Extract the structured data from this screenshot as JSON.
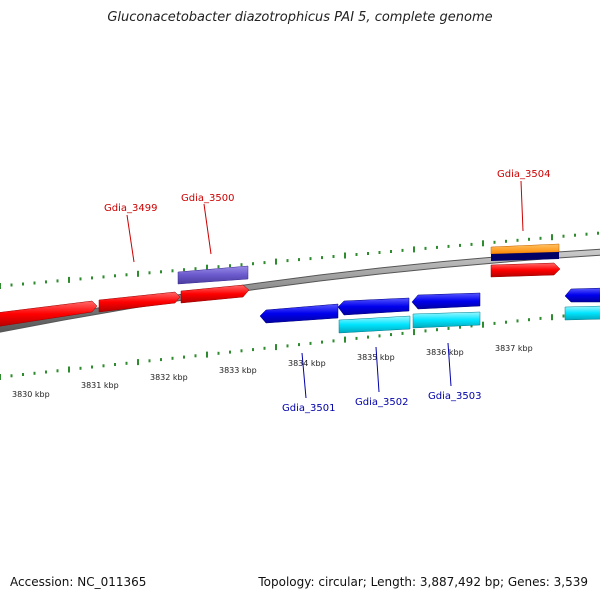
{
  "title": "Gluconacetobacter diazotrophicus PAI 5, complete genome",
  "footer": {
    "accession": "Accession: NC_011365",
    "summary": "Topology: circular; Length: 3,887,492 bp; Genes: 3,539"
  },
  "colors": {
    "forward_gene": "#ff0000",
    "reverse_gene": "#0000ee",
    "cyan_feature": "#00e5ff",
    "purple_feature": "#6a5acd",
    "orange_feature": "#ff9900",
    "navy_feature": "#000066",
    "backbone": "#888888",
    "ticks": "#2e8b2e",
    "label_forward": "#cc0000",
    "label_reverse": "#0000aa"
  },
  "ticks": [
    {
      "label": "3830 kbp"
    },
    {
      "label": "3831 kbp"
    },
    {
      "label": "3832 kbp"
    },
    {
      "label": "3833 kbp"
    },
    {
      "label": "3834 kbp"
    },
    {
      "label": "3835 kbp"
    },
    {
      "label": "3836 kbp"
    },
    {
      "label": "3837 kbp"
    }
  ],
  "gene_labels": [
    {
      "name": "Gdia_3499",
      "strand": "forward"
    },
    {
      "name": "Gdia_3500",
      "strand": "forward"
    },
    {
      "name": "Gdia_3504",
      "strand": "forward"
    },
    {
      "name": "Gdia_3501",
      "strand": "reverse"
    },
    {
      "name": "Gdia_3502",
      "strand": "reverse"
    },
    {
      "name": "Gdia_3503",
      "strand": "reverse"
    }
  ]
}
